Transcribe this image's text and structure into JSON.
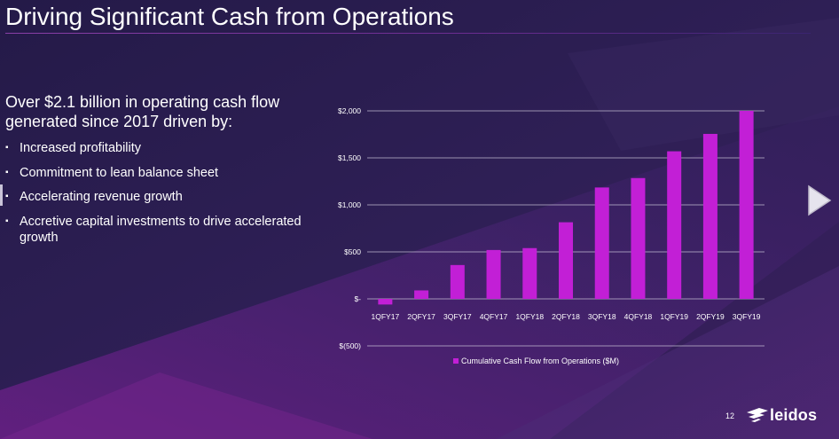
{
  "slide": {
    "title": "Driving Significant Cash from Operations",
    "lead": "Over $2.1 billion in operating cash flow generated since 2017 driven by:",
    "bullets": [
      "Increased profitability",
      "Commitment to lean balance sheet",
      "Accelerating revenue growth",
      "Accretive capital investments to drive accelerated growth"
    ],
    "bullet_glyph": "▪",
    "page_number": "12",
    "logo_text": "leidos"
  },
  "colors": {
    "background": "#2a1c4e",
    "bar": "#c21fd6",
    "gridline": "#d8d4e4",
    "text": "#ffffff"
  },
  "icons": {
    "next": "triangle-right-icon",
    "logo": "leidos-logo-mark"
  },
  "chart_data": {
    "type": "bar",
    "categories": [
      "1QFY17",
      "2QFY17",
      "3QFY17",
      "4QFY17",
      "1QFY18",
      "2QFY18",
      "3QFY18",
      "4QFY18",
      "1QFY19",
      "2QFY19",
      "3QFY19"
    ],
    "series": [
      {
        "name": "Cumulative Cash Flow from Operations ($M)",
        "values": [
          -60,
          90,
          360,
          520,
          540,
          815,
          1185,
          1285,
          1570,
          1755,
          2000
        ]
      }
    ],
    "ylim": [
      -500,
      2000
    ],
    "yticks": [
      {
        "value": 2000,
        "label": "$2,000"
      },
      {
        "value": 1500,
        "label": "$1,500"
      },
      {
        "value": 1000,
        "label": "$1,000"
      },
      {
        "value": 500,
        "label": "$500"
      },
      {
        "value": 0,
        "label": "$-"
      },
      {
        "value": -500,
        "label": "$(500)"
      }
    ],
    "grid": true,
    "legend": "bottom"
  }
}
